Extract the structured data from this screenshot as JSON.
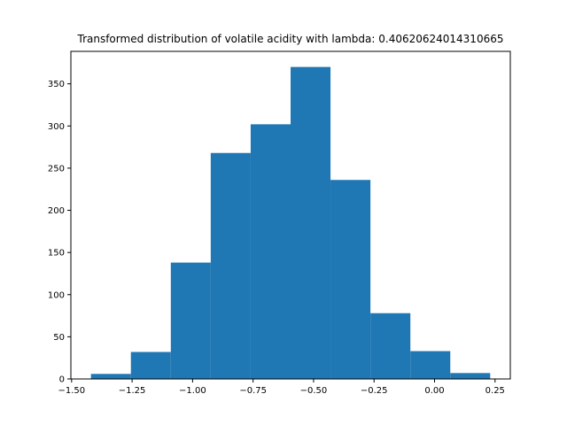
{
  "chart_data": {
    "type": "bar",
    "title": "Transformed distribution of volatile acidity with lambda: 0.40620624014310665",
    "xlabel": "",
    "ylabel": "",
    "bin_edges": [
      -1.42,
      -1.255,
      -1.09,
      -0.925,
      -0.76,
      -0.595,
      -0.43,
      -0.265,
      -0.1,
      0.065,
      0.23
    ],
    "counts": [
      6,
      32,
      138,
      268,
      302,
      370,
      236,
      78,
      33,
      7
    ],
    "xlim": [
      -1.503,
      0.313
    ],
    "ylim": [
      0,
      388.5
    ],
    "xticks": [
      -1.5,
      -1.25,
      -1.0,
      -0.75,
      -0.5,
      -0.25,
      0.0,
      0.25
    ],
    "xtick_labels": [
      "−1.50",
      "−1.25",
      "−1.00",
      "−0.75",
      "−0.50",
      "−0.25",
      "0.00",
      "0.25"
    ],
    "yticks": [
      0,
      50,
      100,
      150,
      200,
      250,
      300,
      350
    ],
    "ytick_labels": [
      "0",
      "50",
      "100",
      "150",
      "200",
      "250",
      "300",
      "350"
    ],
    "bar_color": "#1f77b4",
    "grid": false
  }
}
